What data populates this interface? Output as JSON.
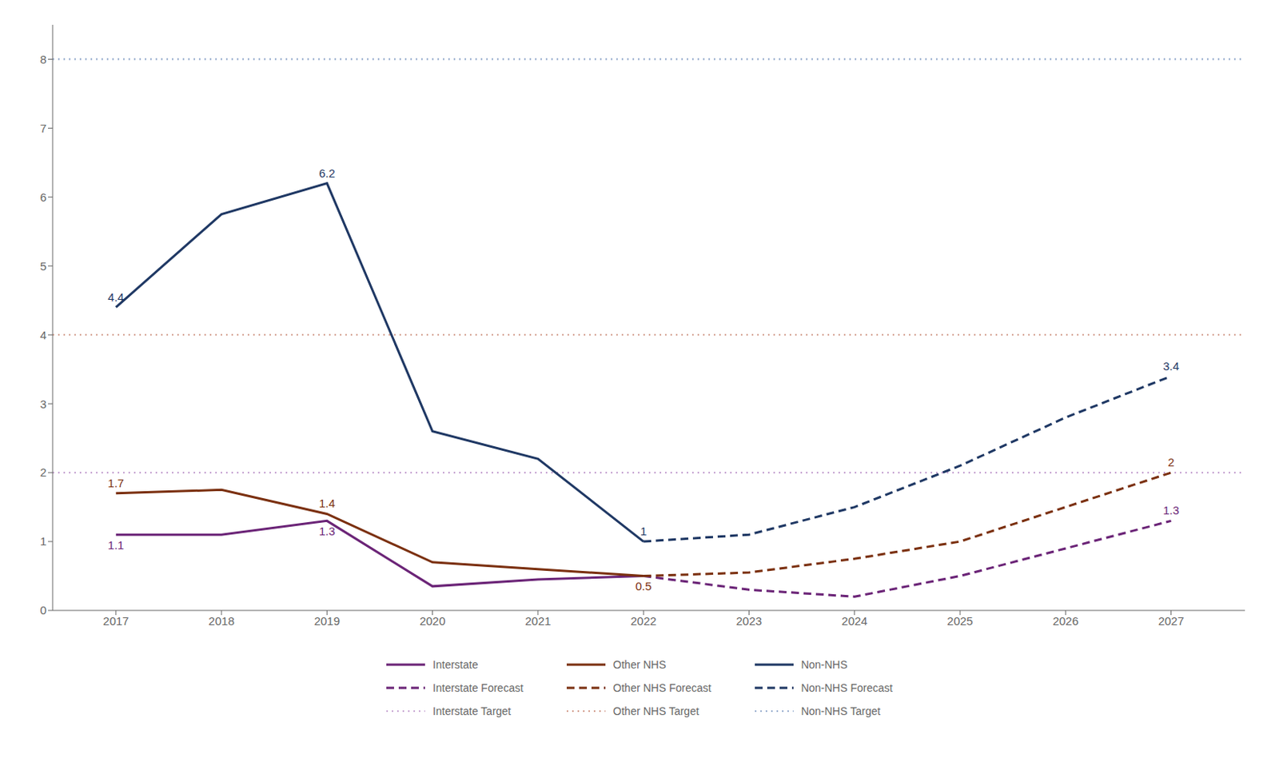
{
  "chart_data": {
    "type": "line",
    "x": [
      2017,
      2018,
      2019,
      2020,
      2021,
      2022,
      2023,
      2024,
      2025,
      2026,
      2027
    ],
    "series": [
      {
        "name": "Interstate",
        "color": "#6B2477",
        "line_style": "solid",
        "values": [
          1.1,
          1.1,
          1.3,
          0.35,
          0.45,
          0.5,
          null,
          null,
          null,
          null,
          null
        ]
      },
      {
        "name": "Other NHS",
        "color": "#7B3010",
        "line_style": "solid",
        "values": [
          1.7,
          1.75,
          1.4,
          0.7,
          0.6,
          0.5,
          null,
          null,
          null,
          null,
          null
        ]
      },
      {
        "name": "Non-NHS",
        "color": "#1F3864",
        "line_style": "solid",
        "values": [
          4.4,
          5.75,
          6.2,
          2.6,
          2.2,
          1.0,
          null,
          null,
          null,
          null,
          null
        ]
      },
      {
        "name": "Interstate Forecast",
        "color": "#6B2477",
        "line_style": "dashed",
        "values": [
          null,
          null,
          null,
          null,
          null,
          0.5,
          0.3,
          0.2,
          0.5,
          0.9,
          1.3
        ]
      },
      {
        "name": "Other NHS Forecast",
        "color": "#7B3010",
        "line_style": "dashed",
        "values": [
          null,
          null,
          null,
          null,
          null,
          0.5,
          0.55,
          0.75,
          1.0,
          1.5,
          2.0
        ]
      },
      {
        "name": "Non-NHS Forecast",
        "color": "#1F3864",
        "line_style": "dashed",
        "values": [
          null,
          null,
          null,
          null,
          null,
          1.0,
          1.1,
          1.5,
          2.1,
          2.8,
          3.4
        ]
      },
      {
        "name": "Interstate Target",
        "color": "#C9A8D4",
        "line_style": "dotted",
        "type": "hline",
        "y": 2.0
      },
      {
        "name": "Other NHS Target",
        "color": "#D4A090",
        "line_style": "dotted",
        "type": "hline",
        "y": 4.0
      },
      {
        "name": "Non-NHS Target",
        "color": "#9BB0D0",
        "line_style": "dotted",
        "type": "hline",
        "y": 8.0
      }
    ],
    "annotations": [
      {
        "text": "4.4",
        "x": 2017,
        "y": 4.4,
        "color": "#1F3864"
      },
      {
        "text": "6.2",
        "x": 2019,
        "y": 6.2,
        "color": "#1F3864"
      },
      {
        "text": "1",
        "x": 2022,
        "y": 1.0,
        "color": "#1F3864"
      },
      {
        "text": "3.4",
        "x": 2027,
        "y": 3.4,
        "color": "#1F3864"
      },
      {
        "text": "1.7",
        "x": 2017,
        "y": 1.7,
        "color": "#7B3010"
      },
      {
        "text": "1.4",
        "x": 2019,
        "y": 1.4,
        "color": "#7B3010"
      },
      {
        "text": "0.5",
        "x": 2022,
        "y": 0.5,
        "color": "#7B3010"
      },
      {
        "text": "2",
        "x": 2027,
        "y": 2.0,
        "color": "#7B3010"
      },
      {
        "text": "1.1",
        "x": 2017,
        "y": 1.1,
        "color": "#6B2477"
      },
      {
        "text": "1.3",
        "x": 2019,
        "y": 1.3,
        "color": "#6B2477"
      },
      {
        "text": "1.3",
        "x": 2027,
        "y": 1.3,
        "color": "#6B2477"
      }
    ],
    "xlim": [
      2016.4,
      2027.7
    ],
    "xticks": [
      2017,
      2018,
      2019,
      2020,
      2021,
      2022,
      2023,
      2024,
      2025,
      2026,
      2027
    ],
    "ylim": [
      0,
      8.5
    ],
    "yticks": [
      0,
      1,
      2,
      3,
      4,
      5,
      6,
      7,
      8
    ],
    "grid": false,
    "legend": "bottom"
  }
}
